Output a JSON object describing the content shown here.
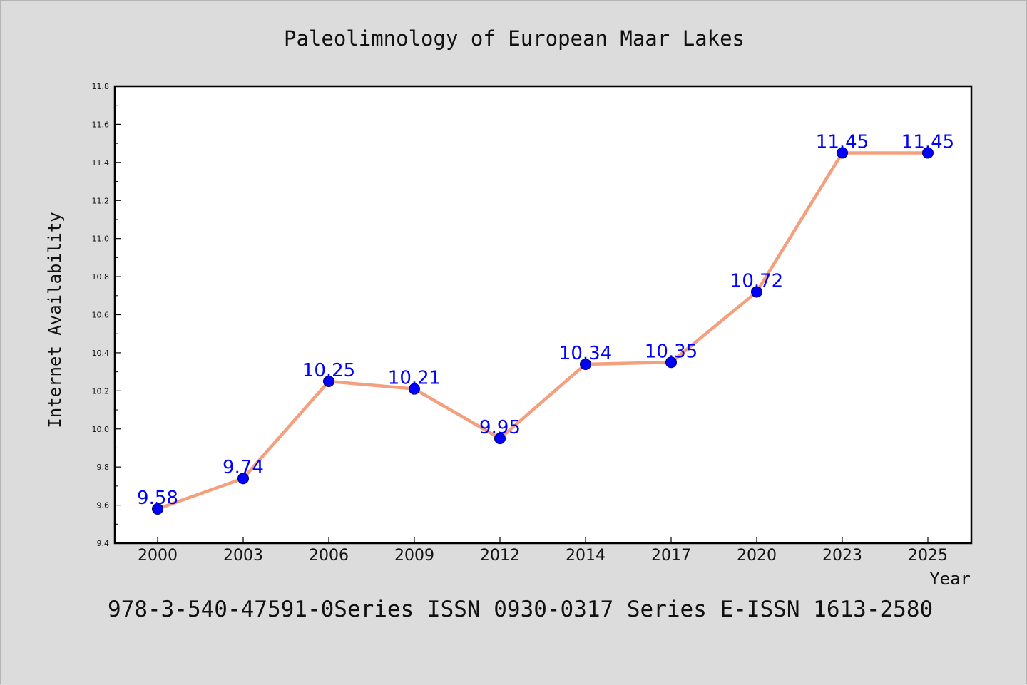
{
  "chart_data": {
    "type": "line",
    "title": "Paleolimnology of European Maar Lakes",
    "xlabel": "Year",
    "ylabel": "Internet Availability",
    "categories": [
      "2000",
      "2003",
      "2006",
      "2009",
      "2012",
      "2014",
      "2017",
      "2020",
      "2023",
      "2025"
    ],
    "series": [
      {
        "values": [
          9.58,
          9.74,
          10.25,
          10.21,
          9.95,
          10.34,
          10.35,
          10.72,
          11.45,
          11.45
        ],
        "data_labels": [
          "9.58",
          "9.74",
          "10.25",
          "10.21",
          "9.95",
          "10.34",
          "10.35",
          "10.72",
          "11.45",
          "11.45"
        ],
        "line_color": "#f4a07f",
        "marker_color": "#0000ff"
      }
    ],
    "ylim": [
      9.4,
      11.8
    ],
    "yticks": [
      "9.4",
      "9.6",
      "9.8",
      "10.0",
      "10.2",
      "10.4",
      "10.6",
      "10.8",
      "11.0",
      "11.2",
      "11.4",
      "11.6",
      "11.8"
    ],
    "grid": false,
    "legend": "none"
  },
  "footer": {
    "text": "978-3-540-47591-0Series ISSN 0930-0317 Series E-ISSN 1613-2580"
  },
  "colors": {
    "background": "#dcdcdc",
    "plot_background": "#ffffff",
    "label_color": "#0000ff"
  }
}
